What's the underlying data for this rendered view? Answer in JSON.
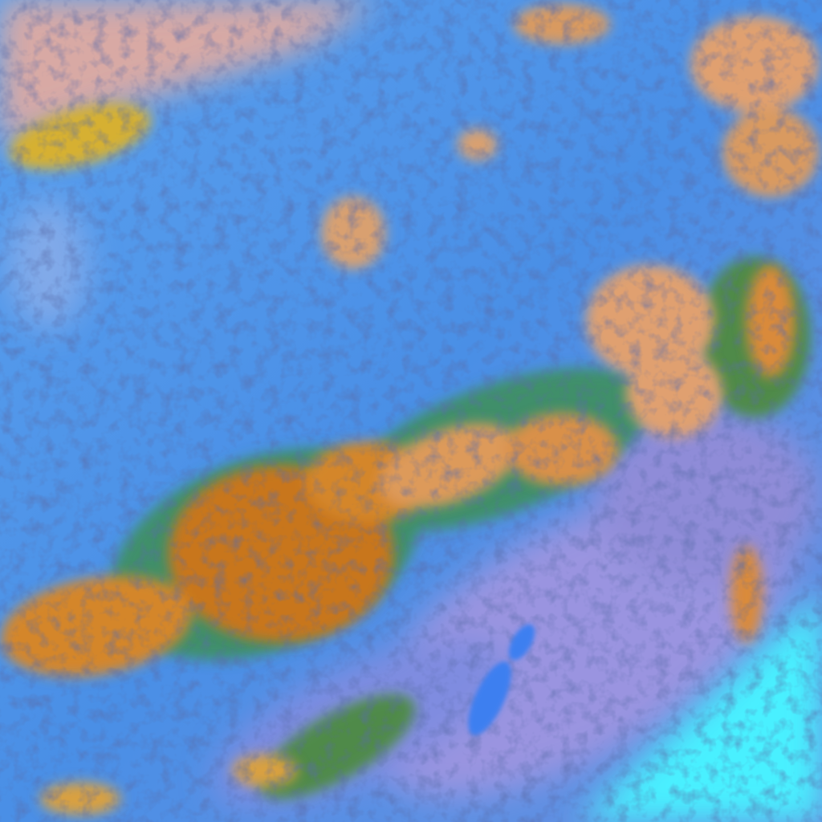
{
  "image": {
    "kind": "false-color satellite cloud imagery",
    "colors": {
      "clear_sky": "#4a8fe6",
      "haze_top_left": "#d8a9a4",
      "lavender_cloud": "#9a94e0",
      "high_cloud_orange": "#d98a3a",
      "deep_convection": "#c8761e",
      "cloud_edge_green": "#3f8f6a",
      "surface_cyan": "#48f0ff",
      "shadow_navy": "#1e2f7a"
    }
  }
}
